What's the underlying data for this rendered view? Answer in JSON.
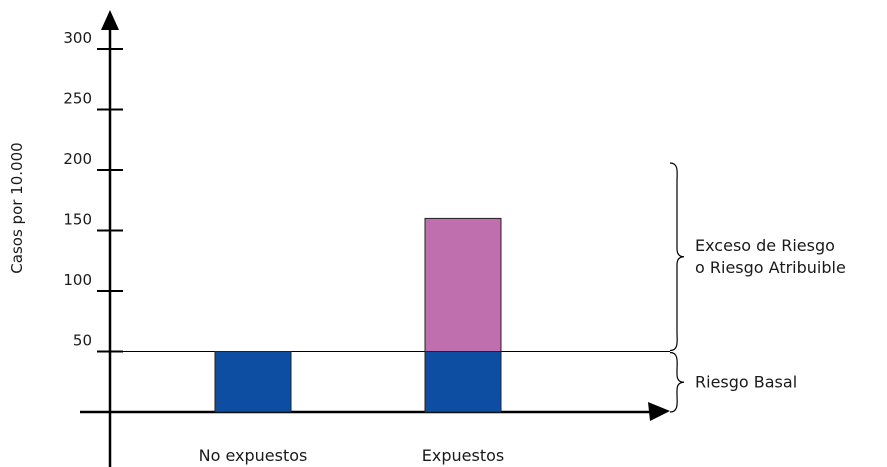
{
  "chart_data": {
    "type": "bar",
    "stacked": true,
    "title": "",
    "ylabel": "Casos por 10.000",
    "xlabel": "",
    "categories": [
      "No expuestos",
      "Expuestos"
    ],
    "series": [
      {
        "values": [
          50,
          50
        ],
        "color": "#0d4ea3"
      },
      {
        "values": [
          0,
          110
        ],
        "color": "#bf6fae"
      }
    ],
    "yticks": [
      "50",
      "100",
      "150",
      "200",
      "250",
      "300"
    ],
    "ytick_values": [
      50,
      100,
      150,
      200,
      250,
      300
    ],
    "ylim": [
      0,
      300
    ],
    "grid": false,
    "reference_line": {
      "value": 50
    },
    "annotations": [
      {
        "key": "excess",
        "lines": [
          "Exceso de Riesgo",
          "o Riesgo Atribuible"
        ],
        "range": [
          50,
          200
        ]
      },
      {
        "key": "basal",
        "lines": [
          "Riesgo Basal"
        ],
        "range": [
          0,
          50
        ]
      }
    ]
  }
}
